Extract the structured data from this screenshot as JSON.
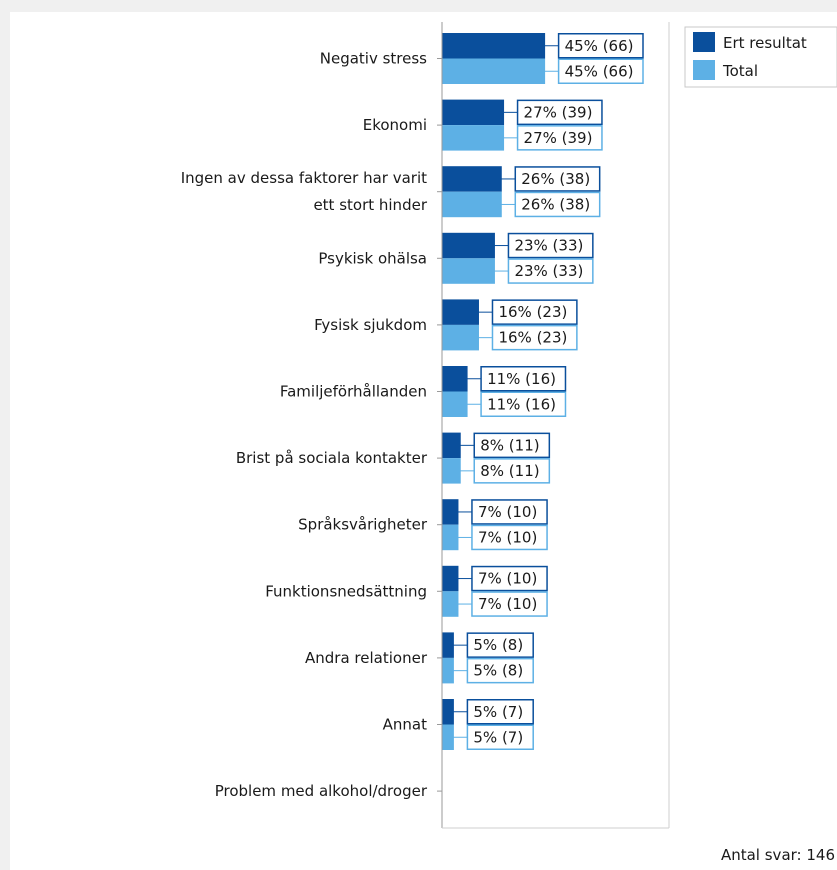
{
  "chart_data": {
    "type": "bar",
    "orientation": "horizontal",
    "categories": [
      "Negativ stress",
      "Ekonomi",
      "Ingen av dessa faktorer har varit ett stort hinder",
      "Psykisk ohälsa",
      "Fysisk sjukdom",
      "Familjeförhållanden",
      "Brist på sociala kontakter",
      "Språksvårigheter",
      "Funktionsnedsättning",
      "Andra relationer",
      "Annat",
      "Problem med alkohol/droger"
    ],
    "series": [
      {
        "name": "Ert resultat",
        "color": "#0a4f9c",
        "values": [
          45,
          27,
          26,
          23,
          16,
          11,
          8,
          7,
          7,
          5,
          5,
          0
        ],
        "counts": [
          66,
          39,
          38,
          33,
          23,
          16,
          11,
          10,
          10,
          8,
          7,
          0
        ],
        "labels": [
          "45% (66)",
          "27% (39)",
          "26% (38)",
          "23% (33)",
          "16% (23)",
          "11% (16)",
          "8% (11)",
          "7% (10)",
          "7% (10)",
          "5% (8)",
          "5% (7)",
          ""
        ]
      },
      {
        "name": "Total",
        "color": "#5db0e5",
        "values": [
          45,
          27,
          26,
          23,
          16,
          11,
          8,
          7,
          7,
          5,
          5,
          0
        ],
        "counts": [
          66,
          39,
          38,
          33,
          23,
          16,
          11,
          10,
          10,
          8,
          7,
          0
        ],
        "labels": [
          "45% (66)",
          "27% (39)",
          "26% (38)",
          "23% (33)",
          "16% (23)",
          "11% (16)",
          "8% (11)",
          "7% (10)",
          "7% (10)",
          "5% (8)",
          "5% (7)",
          ""
        ]
      }
    ],
    "unit": "%",
    "xlim": [
      0,
      100
    ],
    "grid": false,
    "legend_position": "top-right",
    "footer": "Antal svar: 146"
  },
  "colors": {
    "background": "#ffffff",
    "outer_background": "#f0f0f0",
    "axis": "#9a9a9a",
    "label_border_dark": "#0a4f9c",
    "label_border_light": "#5db0e5"
  }
}
